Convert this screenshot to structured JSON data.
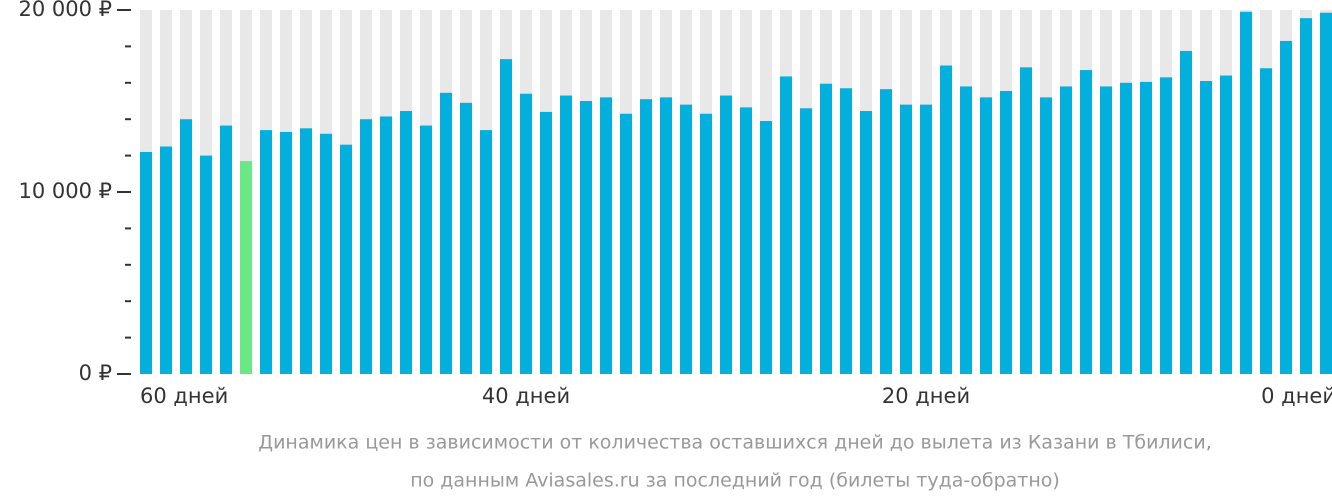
{
  "chart_data": {
    "type": "bar",
    "categories": [
      "60 дней",
      null,
      null,
      null,
      null,
      null,
      null,
      null,
      null,
      null,
      null,
      null,
      null,
      null,
      null,
      null,
      null,
      null,
      null,
      "40 дней",
      null,
      null,
      null,
      null,
      null,
      null,
      null,
      null,
      null,
      null,
      null,
      null,
      null,
      null,
      null,
      null,
      null,
      null,
      null,
      "20 дней",
      null,
      null,
      null,
      null,
      null,
      null,
      null,
      null,
      null,
      null,
      null,
      null,
      null,
      null,
      null,
      null,
      null,
      null,
      null,
      "0 дней"
    ],
    "values": [
      12200,
      12500,
      14000,
      12000,
      13650,
      11700,
      13400,
      13300,
      13500,
      13200,
      12600,
      14000,
      14150,
      14450,
      13650,
      15450,
      14900,
      13400,
      17300,
      15400,
      14400,
      15300,
      15000,
      15200,
      14300,
      15100,
      15200,
      14800,
      14300,
      15300,
      14650,
      13900,
      16350,
      14600,
      15950,
      15700,
      14450,
      15650,
      14800,
      14800,
      16950,
      15800,
      15200,
      15550,
      16850,
      15200,
      15800,
      16700,
      15800,
      16000,
      16050,
      16300,
      17750,
      16100,
      16400,
      19900,
      16800,
      18300,
      19550,
      19850
    ],
    "color": "#03b0dd",
    "highlight": {
      "index": 5,
      "color": "#6be886"
    },
    "ylim": [
      0,
      20000
    ],
    "yticks": [
      {
        "value": 0,
        "label": "0 ₽"
      },
      {
        "value": 10000,
        "label": "10 000 ₽"
      },
      {
        "value": 20000,
        "label": "20 000 ₽"
      }
    ],
    "minor_yticks": [
      2000,
      4000,
      6000,
      8000,
      12000,
      14000,
      16000,
      18000
    ],
    "caption": [
      "Динамика цен в зависимости от количества оставшихся дней до вылета из Казани в Тбилиси,",
      "по данным Aviasales.ru за последний год (билеты туда-обратно)"
    ]
  }
}
